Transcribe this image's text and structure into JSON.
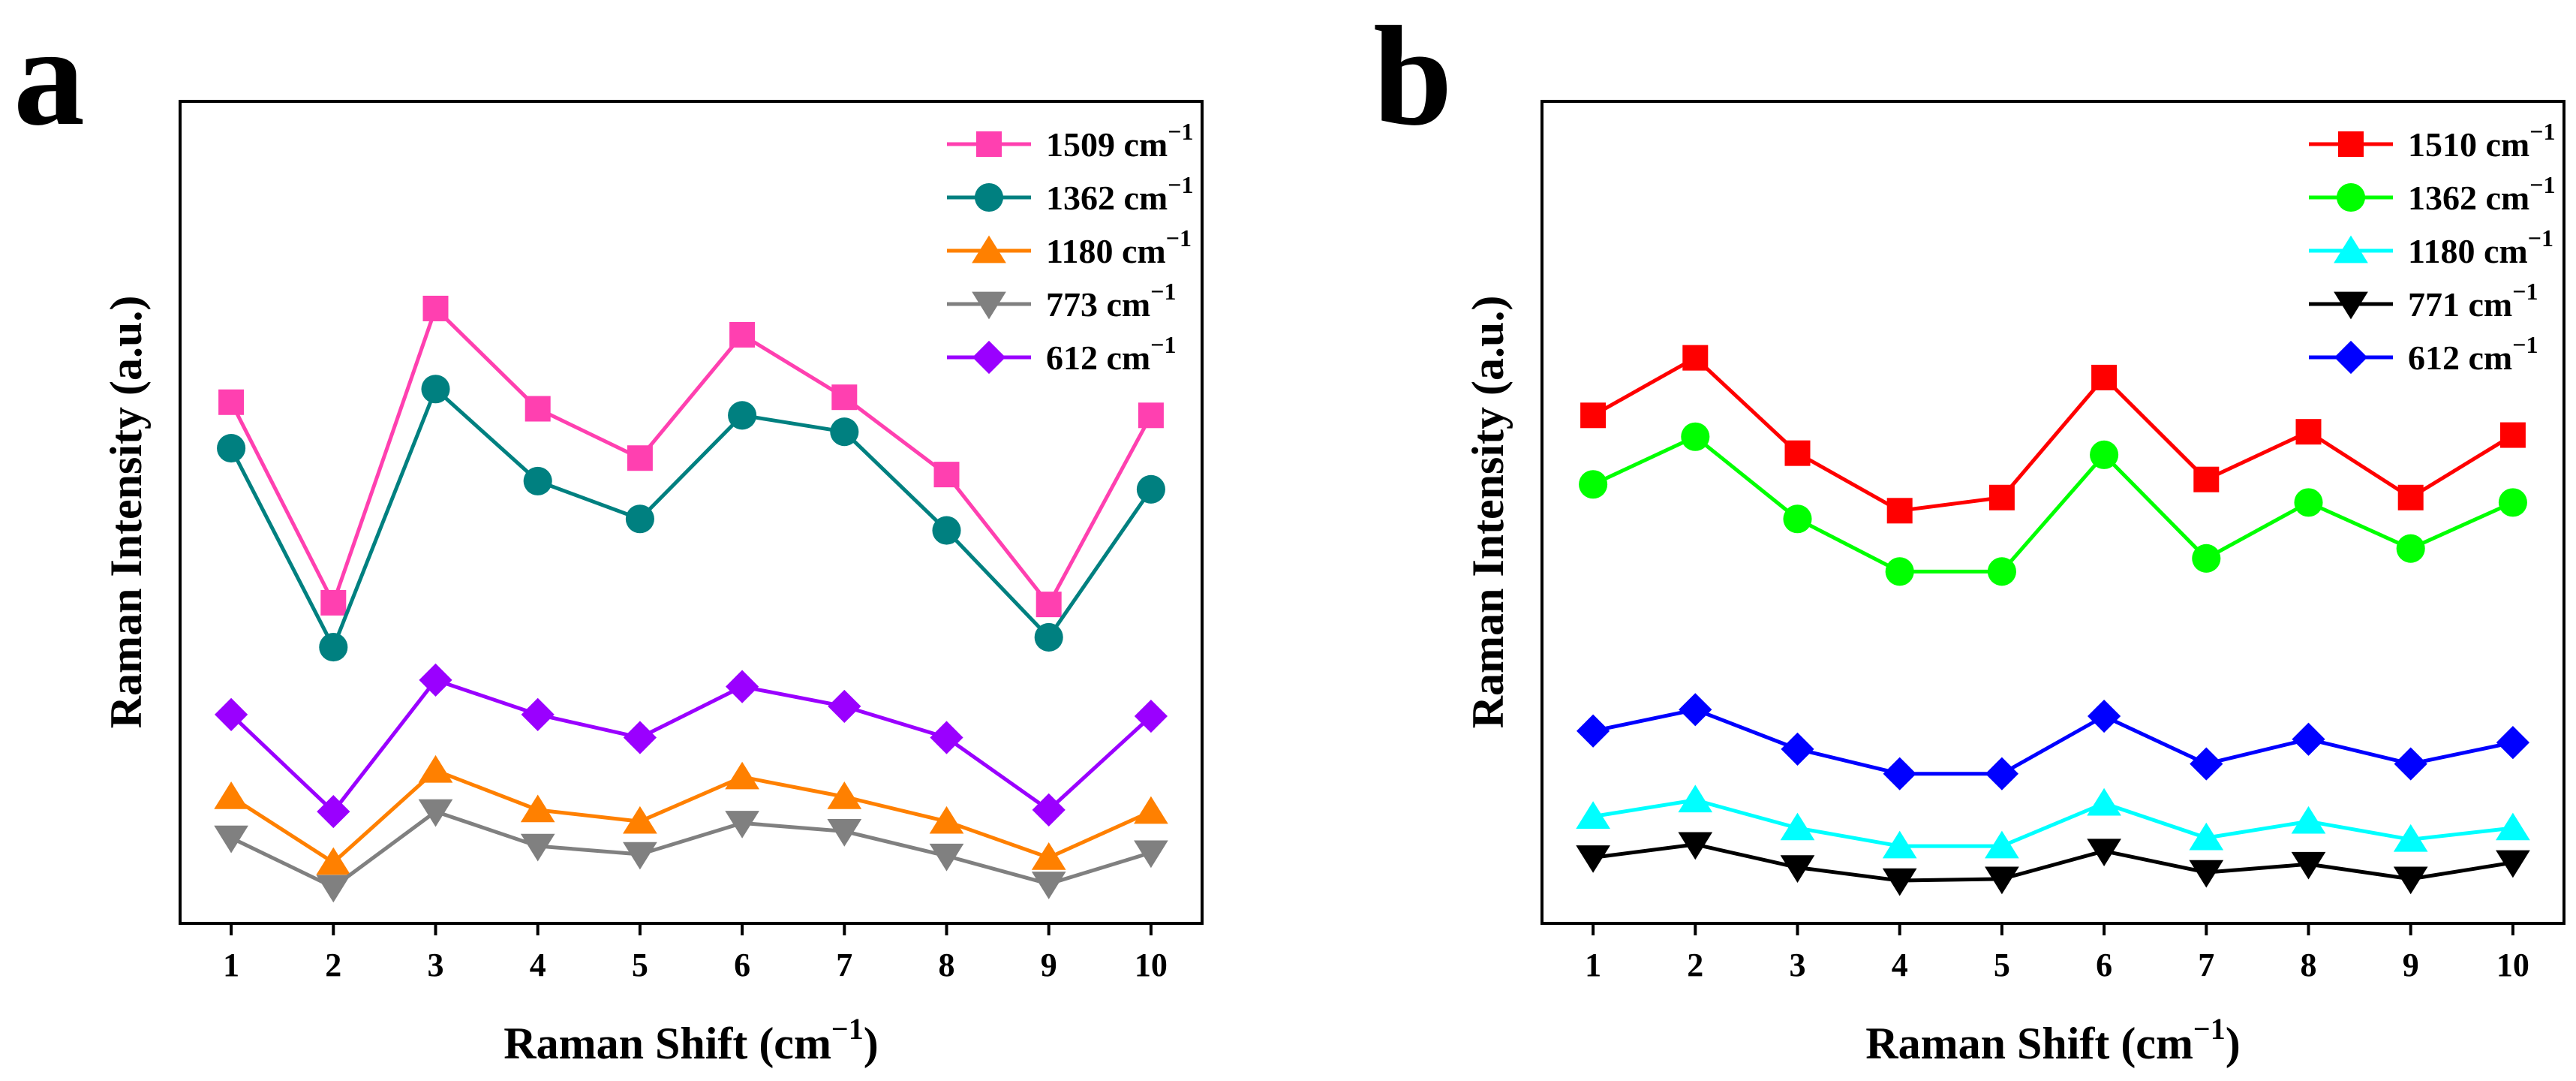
{
  "chart_data": [
    {
      "panel": "a",
      "type": "line",
      "xlabel": "Raman Shift (cm",
      "xlabel_sup": "−1",
      "xlabel_end": ")",
      "ylabel": "Raman Intensity (a.u.)",
      "x": [
        1,
        2,
        3,
        4,
        5,
        6,
        7,
        8,
        9,
        10
      ],
      "xlim": [
        0.5,
        10.5
      ],
      "ylim": [
        0,
        100
      ],
      "legend_position": "top-right",
      "series": [
        {
          "name": "1509 cm",
          "sup": "−1",
          "color": "#ff40b0",
          "marker": "square",
          "values": [
            63.4,
            39.0,
            74.8,
            62.6,
            56.6,
            71.6,
            64.0,
            54.6,
            38.8,
            61.8
          ]
        },
        {
          "name": "1362 cm",
          "sup": "−1",
          "color": "#008080",
          "marker": "circle",
          "values": [
            57.8,
            33.6,
            65.0,
            53.8,
            49.2,
            61.8,
            59.8,
            47.8,
            34.8,
            52.8
          ]
        },
        {
          "name": "1180 cm",
          "sup": "−1",
          "color": "#ff8000",
          "marker": "triangle-up",
          "values": [
            15.4,
            7.4,
            18.6,
            13.8,
            12.4,
            17.8,
            15.4,
            12.4,
            8.0,
            13.6
          ]
        },
        {
          "name": "773 cm",
          "sup": "−1",
          "color": "#808080",
          "marker": "triangle-down",
          "values": [
            10.4,
            4.4,
            13.6,
            9.4,
            8.4,
            12.2,
            11.2,
            8.2,
            4.8,
            8.6
          ]
        },
        {
          "name": "612 cm",
          "sup": "−1",
          "color": "#9a00ff",
          "marker": "diamond",
          "values": [
            25.4,
            13.6,
            29.6,
            25.4,
            22.6,
            28.8,
            26.4,
            22.6,
            13.8,
            25.2
          ]
        }
      ]
    },
    {
      "panel": "b",
      "type": "line",
      "xlabel": "Raman Shift (cm",
      "xlabel_sup": "−1",
      "xlabel_end": ")",
      "ylabel": "Raman Intensity (a.u.)",
      "x": [
        1,
        2,
        3,
        4,
        5,
        6,
        7,
        8,
        9,
        10
      ],
      "xlim": [
        0.5,
        10.5
      ],
      "ylim": [
        0,
        100
      ],
      "legend_position": "top-right",
      "series": [
        {
          "name": "1510 cm",
          "sup": "−1",
          "color": "#ff0000",
          "marker": "square",
          "values": [
            61.8,
            68.8,
            57.2,
            50.2,
            51.8,
            66.4,
            54.0,
            59.8,
            51.8,
            59.4
          ]
        },
        {
          "name": "1362 cm",
          "sup": "−1",
          "color": "#00ff00",
          "marker": "circle",
          "values": [
            53.4,
            59.2,
            49.2,
            42.8,
            42.8,
            57.0,
            44.4,
            51.2,
            45.6,
            51.2
          ]
        },
        {
          "name": "1180 cm",
          "sup": "−1",
          "color": "#00ffff",
          "marker": "triangle-up",
          "values": [
            13.0,
            15.0,
            11.6,
            9.4,
            9.4,
            14.6,
            10.4,
            12.4,
            10.2,
            11.6
          ]
        },
        {
          "name": "771 cm",
          "sup": "−1",
          "color": "#000000",
          "marker": "triangle-down",
          "values": [
            8.0,
            9.6,
            6.8,
            5.2,
            5.4,
            8.8,
            6.2,
            7.2,
            5.4,
            7.4
          ]
        },
        {
          "name": "612 cm",
          "sup": "−1",
          "color": "#0000ff",
          "marker": "diamond",
          "values": [
            23.4,
            26.0,
            21.2,
            18.2,
            18.2,
            25.2,
            19.4,
            22.4,
            19.4,
            22.0
          ]
        }
      ]
    }
  ]
}
